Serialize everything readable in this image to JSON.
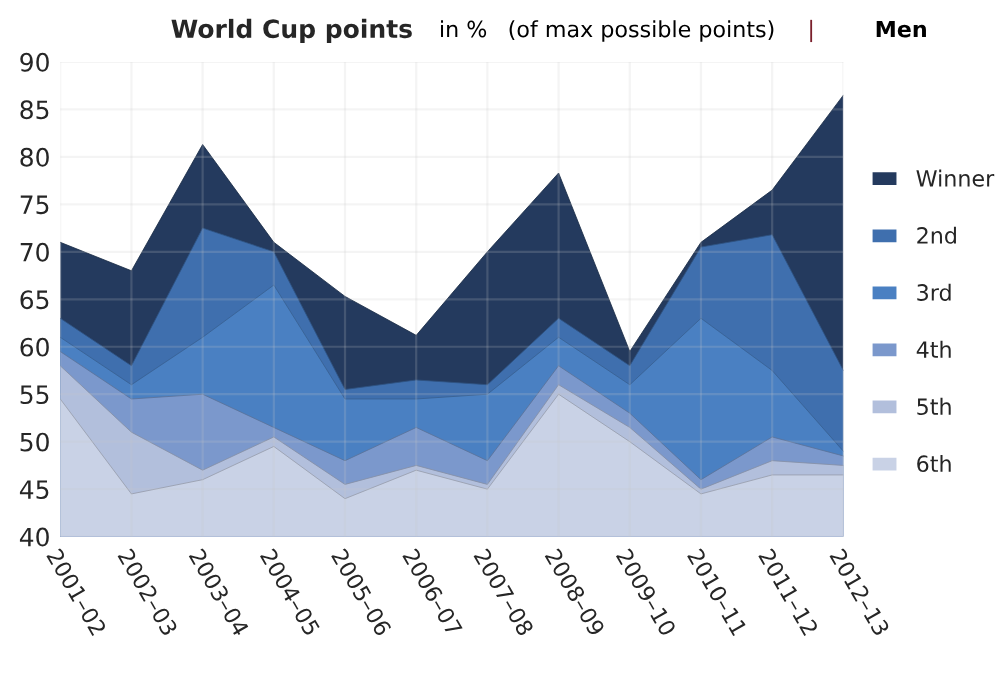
{
  "chart_data": {
    "type": "area",
    "title": "World Cup points",
    "annotations": [
      "in %",
      "(of max possible points)",
      "|",
      "Men"
    ],
    "categories": [
      "2001–02",
      "2002–03",
      "2003–04",
      "2004–05",
      "2005–06",
      "2006–07",
      "2007–08",
      "2008–09",
      "2009–10",
      "2010–11",
      "2011–12",
      "2012–13"
    ],
    "series": [
      {
        "name": "Winner",
        "color": "#243a5e",
        "values": [
          71,
          68,
          81.3,
          71,
          65.3,
          61.2,
          70,
          78.3,
          59.5,
          71,
          76.5,
          86.5
        ]
      },
      {
        "name": "2nd",
        "color": "#3f6fae",
        "values": [
          63,
          58,
          72.5,
          70,
          55.5,
          56.5,
          56,
          63,
          58,
          70.5,
          71.8,
          57.5
        ]
      },
      {
        "name": "3rd",
        "color": "#4a80c2",
        "values": [
          61,
          56,
          61,
          66.5,
          54.5,
          54.5,
          55,
          61,
          56,
          63,
          57.5,
          49
        ]
      },
      {
        "name": "4th",
        "color": "#7b98cc",
        "values": [
          59.5,
          54.5,
          55,
          51.5,
          48,
          51.5,
          48,
          58,
          53,
          46,
          50.5,
          48.5
        ]
      },
      {
        "name": "5th",
        "color": "#b2bfdc",
        "values": [
          58,
          51,
          47,
          50.5,
          45.5,
          47.5,
          45.5,
          56,
          51.5,
          45,
          48,
          47.5
        ]
      },
      {
        "name": "6th",
        "color": "#c9d2e6",
        "values": [
          54.5,
          44.5,
          46,
          49.5,
          44,
          47,
          45,
          55,
          50,
          44.5,
          46.5,
          46.5
        ]
      }
    ],
    "ylim": [
      40,
      90
    ],
    "yticks": [
      40,
      45,
      50,
      55,
      60,
      65,
      70,
      75,
      80,
      85,
      90
    ],
    "grid": true,
    "legend": "right"
  }
}
